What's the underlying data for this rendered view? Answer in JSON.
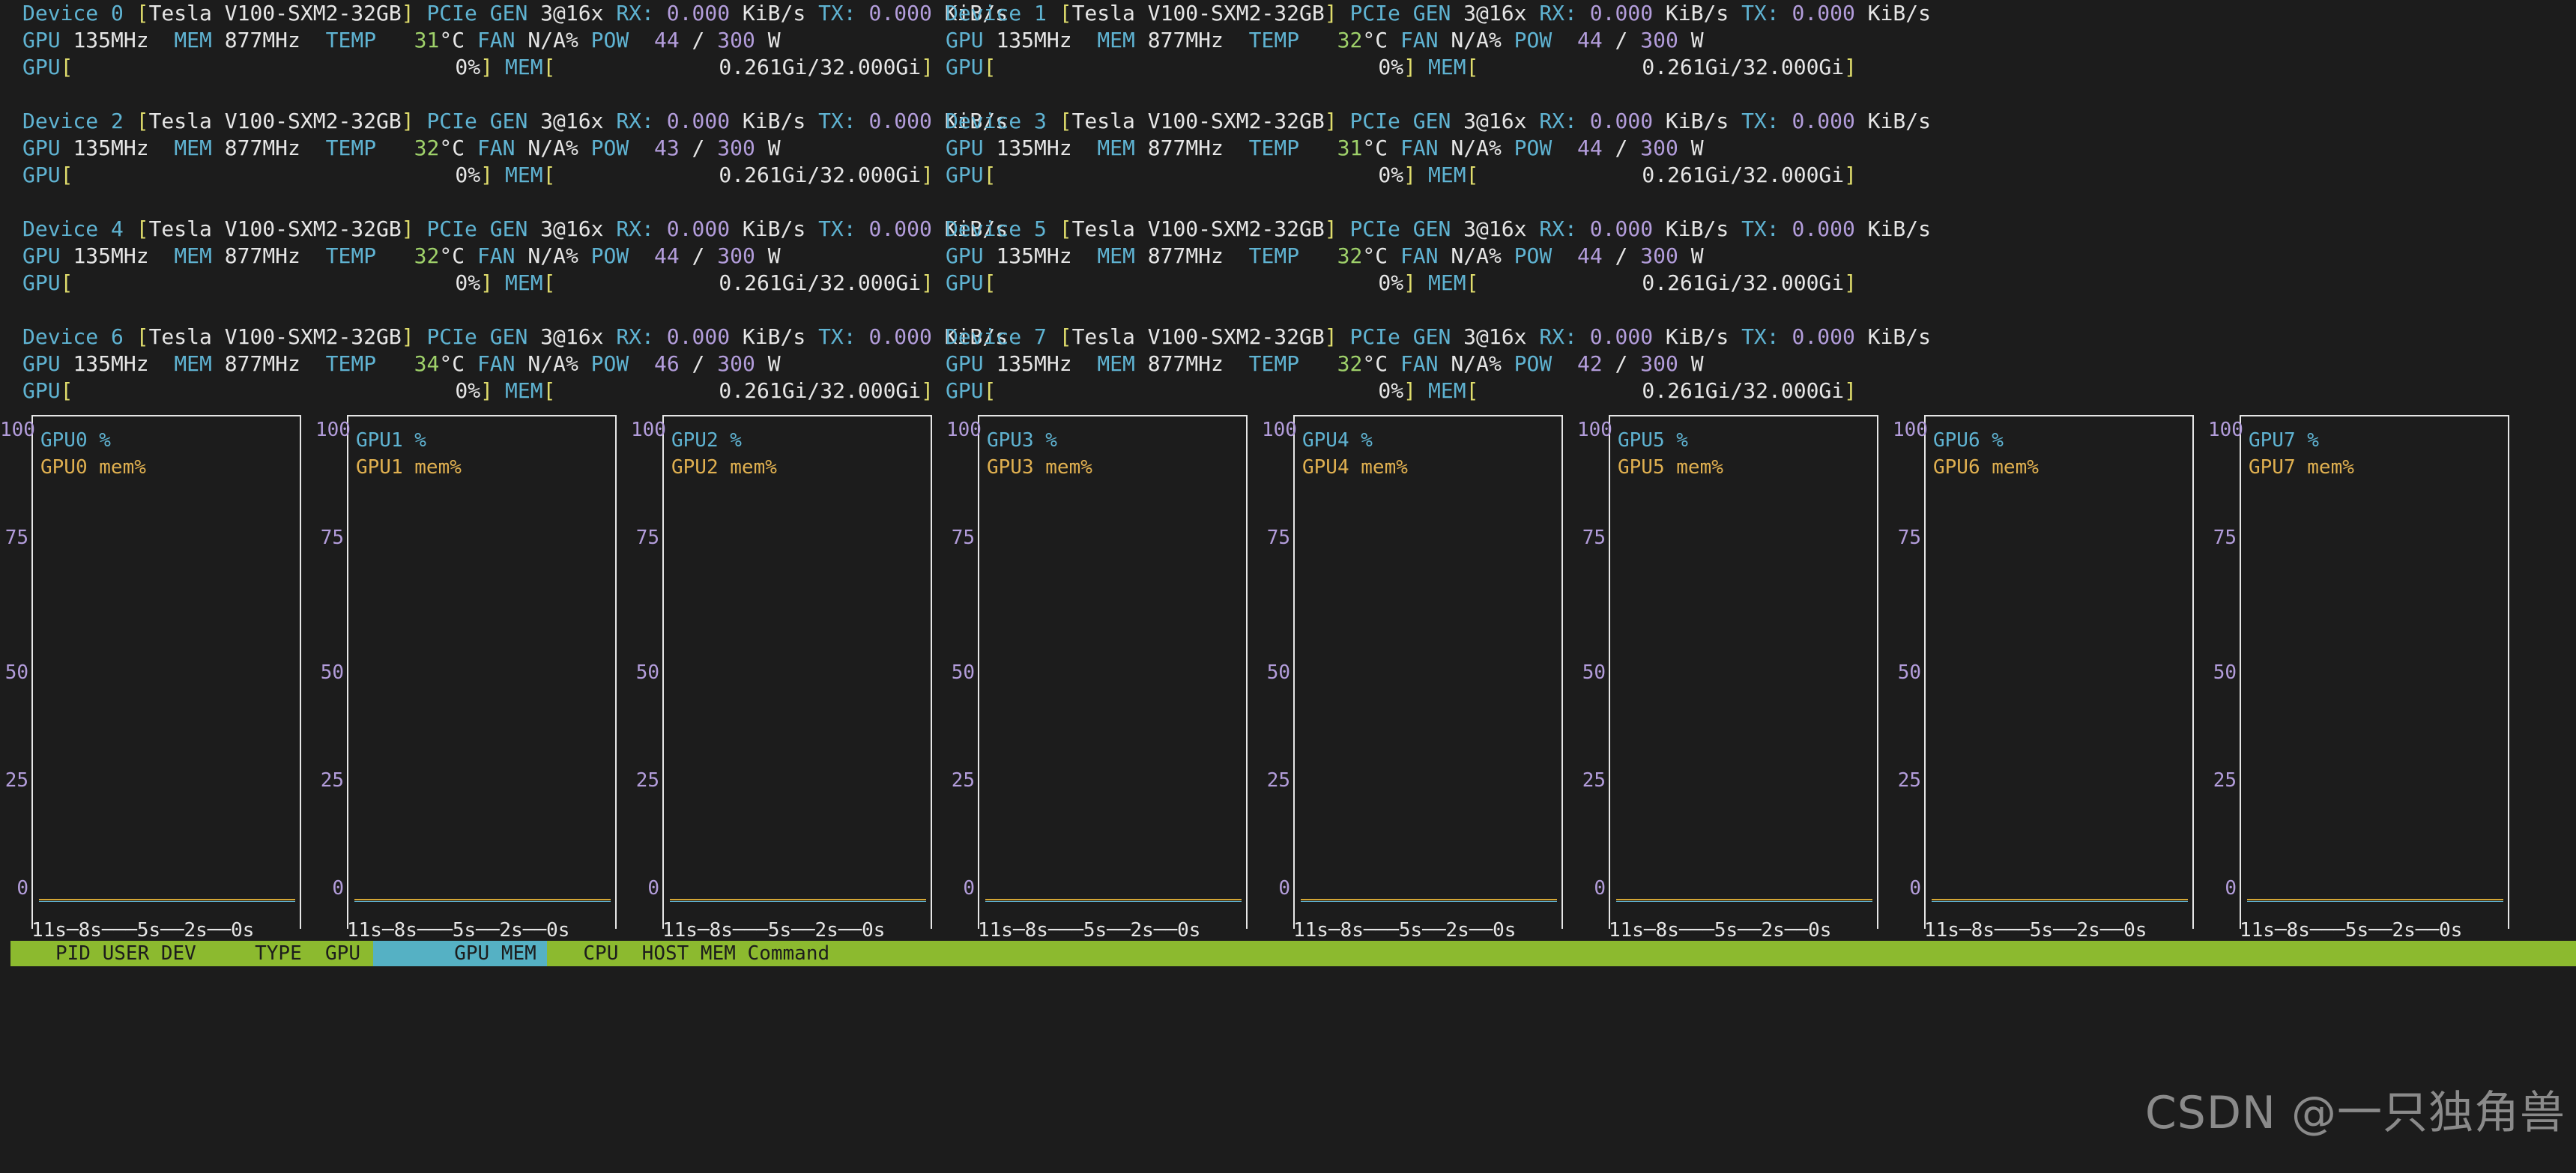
{
  "devices": [
    {
      "id": "Device 0",
      "name": "Tesla V100-SXM2-32GB",
      "pcie": "PCIe GEN",
      "gen": "3",
      "lanes": "@16x",
      "rx_label": "RX:",
      "rx": "0.000",
      "rx_unit": "KiB/s",
      "tx_label": "TX:",
      "tx": "0.000",
      "tx_unit": "KiB/s",
      "gpu_label": "GPU",
      "gpu_clock": "135MHz",
      "mem_label": "MEM",
      "mem_clock": "877MHz",
      "temp_label": "TEMP",
      "temp": "31",
      "temp_unit": "°C",
      "fan_label": "FAN",
      "fan": "N/A%",
      "pow_label": "POW",
      "pow": "44",
      "pow_sep": "/",
      "pow_max": "300",
      "pow_unit": "W",
      "gpu_bar_label": "GPU",
      "gpu_util": "0%",
      "mem_bar_label": "MEM",
      "mem_usage": "0.261Gi/32.000Gi"
    },
    {
      "id": "Device 1",
      "name": "Tesla V100-SXM2-32GB",
      "pcie": "PCIe GEN",
      "gen": "3",
      "lanes": "@16x",
      "rx_label": "RX:",
      "rx": "0.000",
      "rx_unit": "KiB/s",
      "tx_label": "TX:",
      "tx": "0.000",
      "tx_unit": "KiB/s",
      "gpu_label": "GPU",
      "gpu_clock": "135MHz",
      "mem_label": "MEM",
      "mem_clock": "877MHz",
      "temp_label": "TEMP",
      "temp": "32",
      "temp_unit": "°C",
      "fan_label": "FAN",
      "fan": "N/A%",
      "pow_label": "POW",
      "pow": "44",
      "pow_sep": "/",
      "pow_max": "300",
      "pow_unit": "W",
      "gpu_bar_label": "GPU",
      "gpu_util": "0%",
      "mem_bar_label": "MEM",
      "mem_usage": "0.261Gi/32.000Gi"
    },
    {
      "id": "Device 2",
      "name": "Tesla V100-SXM2-32GB",
      "pcie": "PCIe GEN",
      "gen": "3",
      "lanes": "@16x",
      "rx_label": "RX:",
      "rx": "0.000",
      "rx_unit": "KiB/s",
      "tx_label": "TX:",
      "tx": "0.000",
      "tx_unit": "KiB/s",
      "gpu_label": "GPU",
      "gpu_clock": "135MHz",
      "mem_label": "MEM",
      "mem_clock": "877MHz",
      "temp_label": "TEMP",
      "temp": "32",
      "temp_unit": "°C",
      "fan_label": "FAN",
      "fan": "N/A%",
      "pow_label": "POW",
      "pow": "43",
      "pow_sep": "/",
      "pow_max": "300",
      "pow_unit": "W",
      "gpu_bar_label": "GPU",
      "gpu_util": "0%",
      "mem_bar_label": "MEM",
      "mem_usage": "0.261Gi/32.000Gi"
    },
    {
      "id": "Device 3",
      "name": "Tesla V100-SXM2-32GB",
      "pcie": "PCIe GEN",
      "gen": "3",
      "lanes": "@16x",
      "rx_label": "RX:",
      "rx": "0.000",
      "rx_unit": "KiB/s",
      "tx_label": "TX:",
      "tx": "0.000",
      "tx_unit": "KiB/s",
      "gpu_label": "GPU",
      "gpu_clock": "135MHz",
      "mem_label": "MEM",
      "mem_clock": "877MHz",
      "temp_label": "TEMP",
      "temp": "31",
      "temp_unit": "°C",
      "fan_label": "FAN",
      "fan": "N/A%",
      "pow_label": "POW",
      "pow": "44",
      "pow_sep": "/",
      "pow_max": "300",
      "pow_unit": "W",
      "gpu_bar_label": "GPU",
      "gpu_util": "0%",
      "mem_bar_label": "MEM",
      "mem_usage": "0.261Gi/32.000Gi"
    },
    {
      "id": "Device 4",
      "name": "Tesla V100-SXM2-32GB",
      "pcie": "PCIe GEN",
      "gen": "3",
      "lanes": "@16x",
      "rx_label": "RX:",
      "rx": "0.000",
      "rx_unit": "KiB/s",
      "tx_label": "TX:",
      "tx": "0.000",
      "tx_unit": "KiB/s",
      "gpu_label": "GPU",
      "gpu_clock": "135MHz",
      "mem_label": "MEM",
      "mem_clock": "877MHz",
      "temp_label": "TEMP",
      "temp": "32",
      "temp_unit": "°C",
      "fan_label": "FAN",
      "fan": "N/A%",
      "pow_label": "POW",
      "pow": "44",
      "pow_sep": "/",
      "pow_max": "300",
      "pow_unit": "W",
      "gpu_bar_label": "GPU",
      "gpu_util": "0%",
      "mem_bar_label": "MEM",
      "mem_usage": "0.261Gi/32.000Gi"
    },
    {
      "id": "Device 5",
      "name": "Tesla V100-SXM2-32GB",
      "pcie": "PCIe GEN",
      "gen": "3",
      "lanes": "@16x",
      "rx_label": "RX:",
      "rx": "0.000",
      "rx_unit": "KiB/s",
      "tx_label": "TX:",
      "tx": "0.000",
      "tx_unit": "KiB/s",
      "gpu_label": "GPU",
      "gpu_clock": "135MHz",
      "mem_label": "MEM",
      "mem_clock": "877MHz",
      "temp_label": "TEMP",
      "temp": "32",
      "temp_unit": "°C",
      "fan_label": "FAN",
      "fan": "N/A%",
      "pow_label": "POW",
      "pow": "44",
      "pow_sep": "/",
      "pow_max": "300",
      "pow_unit": "W",
      "gpu_bar_label": "GPU",
      "gpu_util": "0%",
      "mem_bar_label": "MEM",
      "mem_usage": "0.261Gi/32.000Gi"
    },
    {
      "id": "Device 6",
      "name": "Tesla V100-SXM2-32GB",
      "pcie": "PCIe GEN",
      "gen": "3",
      "lanes": "@16x",
      "rx_label": "RX:",
      "rx": "0.000",
      "rx_unit": "KiB/s",
      "tx_label": "TX:",
      "tx": "0.000",
      "tx_unit": "KiB/s",
      "gpu_label": "GPU",
      "gpu_clock": "135MHz",
      "mem_label": "MEM",
      "mem_clock": "877MHz",
      "temp_label": "TEMP",
      "temp": "34",
      "temp_unit": "°C",
      "fan_label": "FAN",
      "fan": "N/A%",
      "pow_label": "POW",
      "pow": "46",
      "pow_sep": "/",
      "pow_max": "300",
      "pow_unit": "W",
      "gpu_bar_label": "GPU",
      "gpu_util": "0%",
      "mem_bar_label": "MEM",
      "mem_usage": "0.261Gi/32.000Gi"
    },
    {
      "id": "Device 7",
      "name": "Tesla V100-SXM2-32GB",
      "pcie": "PCIe GEN",
      "gen": "3",
      "lanes": "@16x",
      "rx_label": "RX:",
      "rx": "0.000",
      "rx_unit": "KiB/s",
      "tx_label": "TX:",
      "tx": "0.000",
      "tx_unit": "KiB/s",
      "gpu_label": "GPU",
      "gpu_clock": "135MHz",
      "mem_label": "MEM",
      "mem_clock": "877MHz",
      "temp_label": "TEMP",
      "temp": "32",
      "temp_unit": "°C",
      "fan_label": "FAN",
      "fan": "N/A%",
      "pow_label": "POW",
      "pow": "42",
      "pow_sep": "/",
      "pow_max": "300",
      "pow_unit": "W",
      "gpu_bar_label": "GPU",
      "gpu_util": "0%",
      "mem_bar_label": "MEM",
      "mem_usage": "0.261Gi/32.000Gi"
    }
  ],
  "charts": [
    {
      "util_label": "GPU0 %",
      "mem_label": "GPU0 mem%"
    },
    {
      "util_label": "GPU1 %",
      "mem_label": "GPU1 mem%"
    },
    {
      "util_label": "GPU2 %",
      "mem_label": "GPU2 mem%"
    },
    {
      "util_label": "GPU3 %",
      "mem_label": "GPU3 mem%"
    },
    {
      "util_label": "GPU4 %",
      "mem_label": "GPU4 mem%"
    },
    {
      "util_label": "GPU5 %",
      "mem_label": "GPU5 mem%"
    },
    {
      "util_label": "GPU6 %",
      "mem_label": "GPU6 mem%"
    },
    {
      "util_label": "GPU7 %",
      "mem_label": "GPU7 mem%"
    }
  ],
  "chart_y_ticks": [
    "100",
    "75",
    "50",
    "25",
    "0"
  ],
  "chart_x_axis": "11s─8s───5s──2s──0s",
  "process_header": {
    "text": "PID USER DEV     TYPE  GPU        GPU MEM    CPU  HOST MEM Command"
  },
  "watermark": "CSDN @一只独角兽",
  "colors": {
    "background": "#1c1c1c",
    "label_cyan": "#5fb3d2",
    "value_purple": "#b39ddb",
    "bracket_yellow": "#e0dd6c",
    "header_green": "#8cba2f",
    "header_highlight": "#55b1c4",
    "mem_series": "#e0b050"
  }
}
